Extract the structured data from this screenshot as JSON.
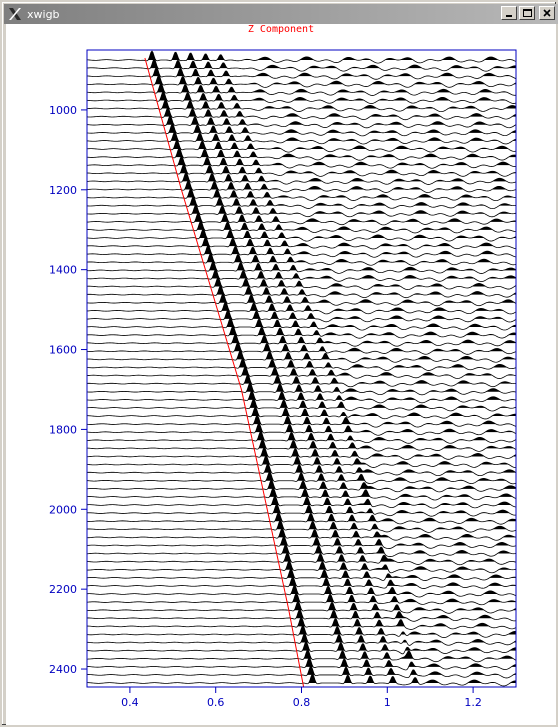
{
  "window": {
    "title": "xwigb",
    "controls": [
      "minimize",
      "maximize",
      "close"
    ]
  },
  "plot": {
    "title": "Z Component",
    "y_tick_labels": [
      "1000",
      "1200",
      "1400",
      "1600",
      "1800",
      "2000",
      "2200",
      "2400"
    ],
    "x_tick_labels": [
      "0.4",
      "0.6",
      "0.8",
      "1",
      "1.2"
    ]
  },
  "chart_data": {
    "type": "line",
    "title": "Z Component",
    "xlabel": "",
    "ylabel": "",
    "x_range": [
      0.3,
      1.3
    ],
    "y_range": [
      870,
      2445
    ],
    "x_ticks": [
      0.4,
      0.6,
      0.8,
      1.0,
      1.2
    ],
    "y_ticks": [
      1000,
      1200,
      1400,
      1600,
      1800,
      2000,
      2200,
      2400
    ],
    "trace_count": 78,
    "trace_depth_start": 875,
    "trace_depth_end": 2435,
    "first_arrival_pick": [
      {
        "x": 0.435,
        "y": 870
      },
      {
        "x": 0.52,
        "y": 1200
      },
      {
        "x": 0.59,
        "y": 1450
      },
      {
        "x": 0.66,
        "y": 1700
      },
      {
        "x": 0.72,
        "y": 2000
      },
      {
        "x": 0.77,
        "y": 2250
      },
      {
        "x": 0.805,
        "y": 2445
      }
    ],
    "colors": {
      "axis": "#0000c0",
      "traces": "#000000",
      "pick_line": "#ff0000",
      "title": "#ff0000"
    }
  }
}
